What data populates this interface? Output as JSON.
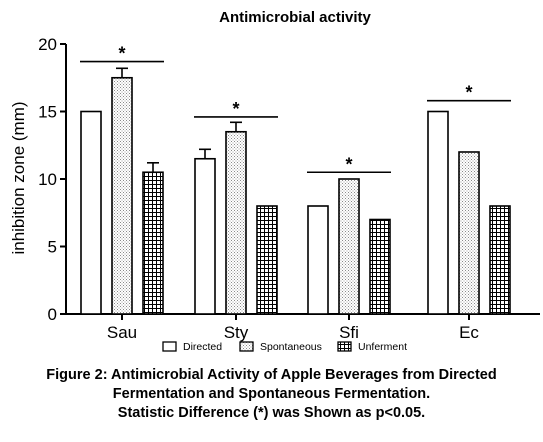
{
  "chart_data": {
    "type": "bar",
    "title": "Antimicrobial activity",
    "ylabel": "inhibition zone (mm)",
    "xlabel": "",
    "ylim": [
      0,
      20
    ],
    "yticks": [
      0,
      5,
      10,
      15,
      20
    ],
    "categories": [
      "Sau",
      "Sty",
      "Sfi",
      "Ec"
    ],
    "series": [
      {
        "name": "Directed",
        "values": [
          15,
          11.5,
          8,
          15
        ],
        "error": [
          0,
          0.7,
          0,
          0
        ],
        "pattern": "solid-white"
      },
      {
        "name": "Spontaneous",
        "values": [
          17.5,
          13.5,
          10,
          12
        ],
        "error": [
          0.7,
          0.7,
          0,
          0
        ],
        "pattern": "stipple"
      },
      {
        "name": "Unferment",
        "values": [
          10.5,
          8,
          7,
          8
        ],
        "error": [
          0.7,
          0,
          0,
          0
        ],
        "pattern": "grid"
      }
    ],
    "significance": [
      {
        "category": "Sau",
        "label": "*",
        "y": 18.7
      },
      {
        "category": "Sty",
        "label": "*",
        "y": 14.6
      },
      {
        "category": "Sfi",
        "label": "*",
        "y": 10.5
      },
      {
        "category": "Ec",
        "label": "*",
        "y": 15.8
      }
    ],
    "legend_position": "bottom",
    "grid": false
  },
  "caption": {
    "line1": "Figure 2: Antimicrobial Activity of Apple Beverages from Directed",
    "line2": "Fermentation and Spontaneous Fermentation.",
    "line3": "Statistic Difference (*) was Shown as p<0.05."
  }
}
